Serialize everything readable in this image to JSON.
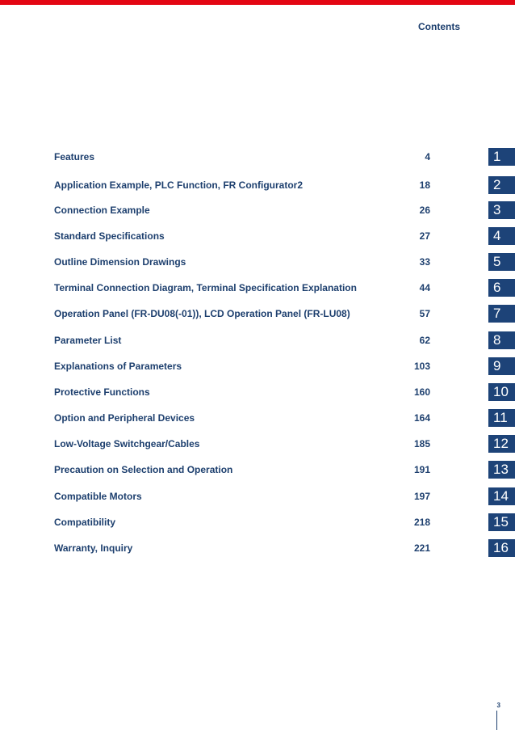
{
  "header": {
    "title": "Contents"
  },
  "toc": [
    {
      "title": "Features",
      "page": "4",
      "tab": "1"
    },
    {
      "title": "Application Example, PLC Function, FR Configurator2",
      "page": "18",
      "tab": "2"
    },
    {
      "title": "Connection Example",
      "page": "26",
      "tab": "3"
    },
    {
      "title": "Standard Specifications",
      "page": "27",
      "tab": "4"
    },
    {
      "title": "Outline Dimension Drawings",
      "page": "33",
      "tab": "5"
    },
    {
      "title": "Terminal Connection Diagram, Terminal Specification Explanation",
      "page": "44",
      "tab": "6"
    },
    {
      "title": "Operation Panel (FR-DU08(-01)), LCD Operation Panel (FR-LU08)",
      "page": "57",
      "tab": "7"
    },
    {
      "title": "Parameter List",
      "page": "62",
      "tab": "8"
    },
    {
      "title": "Explanations of Parameters",
      "page": "103",
      "tab": "9"
    },
    {
      "title": "Protective Functions",
      "page": "160",
      "tab": "10"
    },
    {
      "title": "Option and Peripheral Devices",
      "page": "164",
      "tab": "11"
    },
    {
      "title": "Low-Voltage Switchgear/Cables",
      "page": "185",
      "tab": "12"
    },
    {
      "title": "Precaution on Selection and Operation",
      "page": "191",
      "tab": "13"
    },
    {
      "title": "Compatible Motors",
      "page": "197",
      "tab": "14"
    },
    {
      "title": "Compatibility",
      "page": "218",
      "tab": "15"
    },
    {
      "title": "Warranty, Inquiry",
      "page": "221",
      "tab": "16"
    }
  ],
  "footer": {
    "page_number": "3"
  },
  "colors": {
    "accent_red": "#e30613",
    "navy": "#1d4378",
    "text": "#1d3f6e"
  }
}
